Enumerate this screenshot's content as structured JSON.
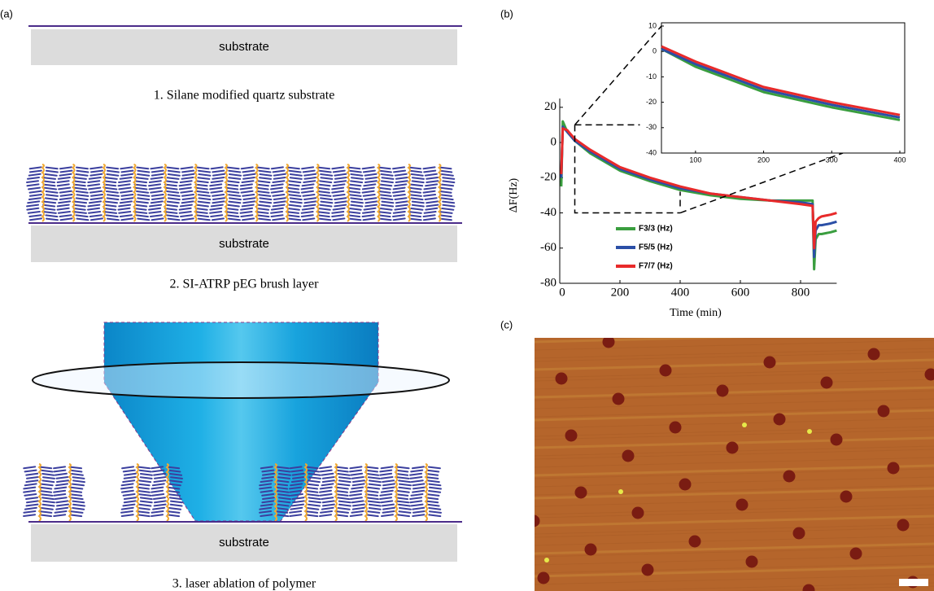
{
  "diagram": {
    "label": "(a)",
    "steps": [
      {
        "substrate": "substrate",
        "caption": "1. Silane modified quartz substrate"
      },
      {
        "substrate": "substrate",
        "caption": "2. SI-ATRP pEG brush layer"
      },
      {
        "substrate": "substrate",
        "caption": "3. laser ablation of polymer"
      }
    ]
  },
  "chart_data": {
    "type": "line",
    "label": "(b)",
    "x_label": "Time (min)",
    "y_label": "ΔF(Hz)",
    "x": [
      5,
      10,
      25,
      50,
      100,
      150,
      200,
      300,
      400,
      500,
      600,
      700,
      800,
      840,
      845,
      850,
      860,
      870,
      900,
      920
    ],
    "series": [
      {
        "name": "F3/3 (Hz)",
        "color": "#3a9e3f",
        "values": [
          -25,
          12,
          6,
          1,
          -6,
          -11,
          -16,
          -22,
          -27,
          -30,
          -32,
          -33,
          -33,
          -33,
          -72,
          -55,
          -52,
          -52,
          -51,
          -50
        ]
      },
      {
        "name": "F5/5 (Hz)",
        "color": "#2b4fa6",
        "values": [
          -20,
          9,
          6,
          1,
          -5,
          -10,
          -15,
          -21,
          -26,
          -29,
          -31,
          -33,
          -34,
          -35,
          -65,
          -50,
          -47,
          -47,
          -46,
          -45
        ]
      },
      {
        "name": "F7/7 (Hz)",
        "color": "#e82a2a",
        "values": [
          -18,
          8,
          7,
          2,
          -4,
          -9,
          -14,
          -20,
          -25,
          -29,
          -31,
          -33,
          -35,
          -36,
          -60,
          -45,
          -43,
          -42,
          -41,
          -40
        ]
      }
    ],
    "xlim": [
      0,
      920
    ],
    "xticks": [
      0,
      200,
      400,
      600,
      800
    ],
    "ylim": [
      -80,
      25
    ],
    "yticks": [
      -80,
      -60,
      -40,
      -20,
      0,
      20
    ],
    "legend": "lower left",
    "inset": {
      "xlim": [
        50,
        400
      ],
      "ylim": [
        -40,
        10
      ],
      "xticks": [
        100,
        200,
        300,
        400
      ],
      "yticks": [
        -40,
        -30,
        -20,
        -10,
        0,
        10
      ]
    }
  },
  "image": {
    "label": "(c)"
  }
}
